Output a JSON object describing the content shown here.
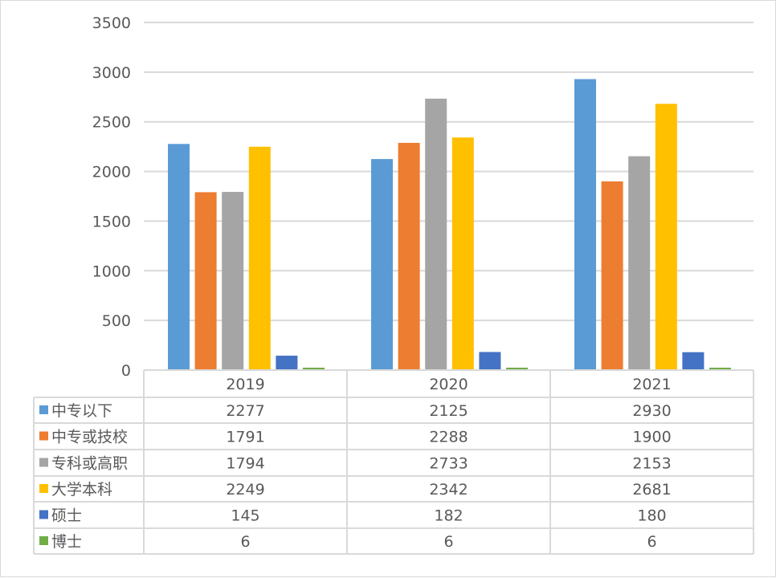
{
  "chart_data": {
    "type": "bar",
    "title": "",
    "xlabel": "",
    "ylabel": "",
    "ylim": [
      0,
      3500
    ],
    "yticks": [
      0,
      500,
      1000,
      1500,
      2000,
      2500,
      3000,
      3500
    ],
    "grid": true,
    "legend": "data-table-below",
    "categories": [
      "2019",
      "2020",
      "2021"
    ],
    "series": [
      {
        "name": "中专以下",
        "color": "#5B9BD5",
        "values": [
          2277,
          2125,
          2930
        ]
      },
      {
        "name": "中专或技校",
        "color": "#ED7D31",
        "values": [
          1791,
          2288,
          1900
        ]
      },
      {
        "name": "专科或高职",
        "color": "#A5A5A5",
        "values": [
          1794,
          2733,
          2153
        ]
      },
      {
        "name": "大学本科",
        "color": "#FFC000",
        "values": [
          2249,
          2342,
          2681
        ]
      },
      {
        "name": "硕士",
        "color": "#4472C4",
        "values": [
          145,
          182,
          180
        ]
      },
      {
        "name": "博士",
        "color": "#70AD47",
        "values": [
          6,
          6,
          6
        ]
      }
    ]
  }
}
